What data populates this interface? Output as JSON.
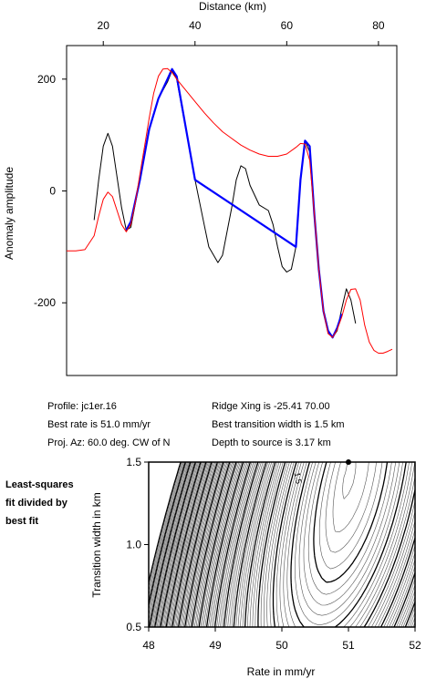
{
  "chart_data": [
    {
      "type": "line",
      "xlabel": "Distance (km)",
      "ylabel": "Anomaly amplitude",
      "xlim": [
        12,
        84
      ],
      "ylim": [
        -330,
        260
      ],
      "xticks": [
        20,
        40,
        60,
        80
      ],
      "yticks": [
        200,
        0,
        -200
      ],
      "grid": false,
      "series": [
        {
          "color": "#000000",
          "points": [
            [
              18,
              -52
            ],
            [
              19,
              20
            ],
            [
              20,
              80
            ],
            [
              21,
              103
            ],
            [
              22,
              80
            ],
            [
              23,
              25
            ],
            [
              24,
              -30
            ],
            [
              25,
              -70
            ],
            [
              26,
              -65
            ],
            [
              28,
              20
            ],
            [
              30,
              110
            ],
            [
              32,
              165
            ],
            [
              34,
              195
            ],
            [
              35,
              215
            ],
            [
              36,
              200
            ],
            [
              38,
              110
            ],
            [
              40,
              20
            ],
            [
              42,
              -60
            ],
            [
              43,
              -100
            ],
            [
              45,
              -128
            ],
            [
              46,
              -115
            ],
            [
              48,
              -30
            ],
            [
              49,
              20
            ],
            [
              50,
              45
            ],
            [
              51,
              40
            ],
            [
              52,
              10
            ],
            [
              54,
              -25
            ],
            [
              56,
              -35
            ],
            [
              57,
              -60
            ],
            [
              58,
              -100
            ],
            [
              59,
              -135
            ],
            [
              60,
              -145
            ],
            [
              61,
              -140
            ],
            [
              62,
              -100
            ],
            [
              63,
              20
            ],
            [
              64,
              90
            ],
            [
              65,
              70
            ],
            [
              66,
              -40
            ],
            [
              67,
              -140
            ],
            [
              68,
              -215
            ],
            [
              69,
              -250
            ],
            [
              70,
              -262
            ],
            [
              71,
              -250
            ],
            [
              72,
              -210
            ],
            [
              73,
              -175
            ],
            [
              74,
              -195
            ],
            [
              75,
              -237
            ]
          ]
        },
        {
          "color": "#0000ff",
          "points": [
            [
              25,
              -70
            ],
            [
              26,
              -55
            ],
            [
              28,
              20
            ],
            [
              30,
              110
            ],
            [
              32,
              165
            ],
            [
              34,
              200
            ],
            [
              35,
              218
            ],
            [
              36,
              205
            ],
            [
              40,
              20
            ],
            [
              62,
              -100
            ],
            [
              63,
              20
            ],
            [
              64,
              90
            ],
            [
              65,
              80
            ],
            [
              66,
              -40
            ],
            [
              67,
              -140
            ],
            [
              68,
              -215
            ],
            [
              69,
              -250
            ],
            [
              70,
              -262
            ],
            [
              71,
              -245
            ],
            [
              72,
              -220
            ]
          ]
        },
        {
          "color": "#ff0000",
          "points": [
            [
              12,
              -107
            ],
            [
              14,
              -107
            ],
            [
              16,
              -105
            ],
            [
              18,
              -80
            ],
            [
              19,
              -45
            ],
            [
              20,
              -15
            ],
            [
              21,
              -2
            ],
            [
              22,
              -10
            ],
            [
              23,
              -35
            ],
            [
              24,
              -60
            ],
            [
              25,
              -73
            ],
            [
              26,
              -60
            ],
            [
              27,
              -20
            ],
            [
              28,
              30
            ],
            [
              29,
              80
            ],
            [
              30,
              130
            ],
            [
              31,
              175
            ],
            [
              32,
              205
            ],
            [
              33,
              218
            ],
            [
              34,
              219
            ],
            [
              35,
              212
            ],
            [
              36,
              200
            ],
            [
              38,
              180
            ],
            [
              40,
              160
            ],
            [
              42,
              140
            ],
            [
              44,
              122
            ],
            [
              46,
              106
            ],
            [
              48,
              94
            ],
            [
              50,
              82
            ],
            [
              52,
              73
            ],
            [
              54,
              66
            ],
            [
              56,
              62
            ],
            [
              58,
              62
            ],
            [
              60,
              66
            ],
            [
              62,
              78
            ],
            [
              63,
              85
            ],
            [
              64,
              84
            ],
            [
              65,
              55
            ],
            [
              66,
              -40
            ],
            [
              67,
              -140
            ],
            [
              68,
              -215
            ],
            [
              69,
              -255
            ],
            [
              70,
              -262
            ],
            [
              71,
              -248
            ],
            [
              72,
              -225
            ],
            [
              73,
              -195
            ],
            [
              74,
              -176
            ],
            [
              75,
              -175
            ],
            [
              76,
              -195
            ],
            [
              77,
              -240
            ],
            [
              78,
              -270
            ],
            [
              79,
              -285
            ],
            [
              80,
              -290
            ],
            [
              81,
              -290
            ],
            [
              82,
              -287
            ],
            [
              83,
              -283
            ]
          ]
        }
      ]
    },
    {
      "type": "contour",
      "title": "Least-squares fit divided by best fit",
      "xlabel": "Rate in mm/yr",
      "ylabel": "Transition width in km",
      "xlim": [
        48,
        52
      ],
      "ylim": [
        0.5,
        1.5
      ],
      "xticks": [
        48,
        49,
        50,
        51,
        52
      ],
      "yticks": [
        0.5,
        1.0,
        1.5
      ],
      "contour_label": "1.5",
      "best_fit": {
        "rate": 51.0,
        "width": 1.5
      }
    }
  ],
  "info": {
    "profile": "Profile: jc1er.16",
    "best_rate": "Best rate is 51.0 mm/yr",
    "proj_az": "Proj. Az: 60.0 deg. CW of N",
    "ridge_xing": "Ridge Xing is -25.41  70.00",
    "best_width": "Best transition width is 1.5 km",
    "depth": "Depth to source is    3.17 km"
  }
}
